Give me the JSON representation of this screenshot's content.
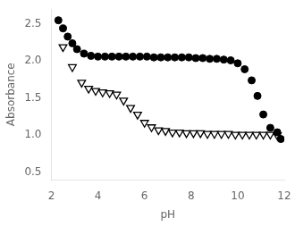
{
  "chart_data": {
    "type": "scatter",
    "xlabel": "pH",
    "ylabel": "Absorbance",
    "series": [
      {
        "x": [
          2.3,
          2.5,
          2.7,
          2.9,
          3.1,
          3.4,
          3.7,
          4.0,
          4.3,
          4.6,
          4.9,
          5.2,
          5.5,
          5.8,
          6.1,
          6.4,
          6.7,
          7.0,
          7.3,
          7.6,
          7.9,
          8.2,
          8.5,
          8.8,
          9.1,
          9.4,
          9.7,
          10.0,
          10.3,
          10.6,
          10.85,
          11.1,
          11.4,
          11.7,
          11.85
        ],
        "values": [
          2.55,
          2.44,
          2.33,
          2.24,
          2.16,
          2.1,
          2.07,
          2.06,
          2.06,
          2.06,
          2.06,
          2.06,
          2.06,
          2.06,
          2.06,
          2.05,
          2.05,
          2.05,
          2.05,
          2.05,
          2.05,
          2.04,
          2.04,
          2.03,
          2.03,
          2.02,
          2.01,
          1.97,
          1.89,
          1.74,
          1.53,
          1.28,
          1.1,
          1.04,
          0.95
        ],
        "color": "black",
        "marker": "circle"
      },
      {
        "x": [
          2.5,
          2.9,
          3.3,
          3.6,
          3.9,
          4.2,
          4.5,
          4.8,
          5.1,
          5.4,
          5.7,
          6.0,
          6.3,
          6.6,
          6.9,
          7.2,
          7.5,
          7.8,
          8.1,
          8.4,
          8.7,
          9.0,
          9.3,
          9.6,
          9.9,
          10.2,
          10.5,
          10.8,
          11.1,
          11.4,
          11.7
        ],
        "values": [
          2.19,
          1.92,
          1.71,
          1.63,
          1.6,
          1.58,
          1.57,
          1.55,
          1.47,
          1.37,
          1.28,
          1.17,
          1.11,
          1.07,
          1.06,
          1.04,
          1.04,
          1.03,
          1.03,
          1.03,
          1.02,
          1.02,
          1.02,
          1.02,
          1.01,
          1.01,
          1.01,
          1.01,
          1.01,
          1.01,
          1.0
        ],
        "color": "black",
        "marker": "open_triangle_down"
      }
    ],
    "xlim": [
      2,
      12
    ],
    "ylim": [
      0.4,
      2.7
    ],
    "xticks": [
      2,
      4,
      6,
      8,
      10,
      12
    ],
    "yticks": [
      0.5,
      {
        "value": 1.0,
        "label": "1.0"
      },
      1.5,
      {
        "value": 2.0,
        "label": "2.0"
      },
      2.5
    ],
    "grid": false
  }
}
